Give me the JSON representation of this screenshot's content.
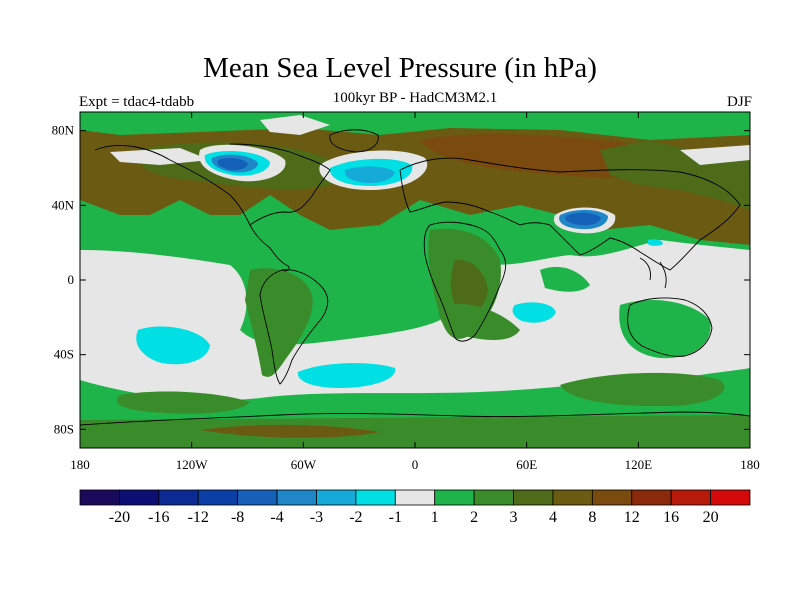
{
  "title": "Mean Sea Level Pressure (in hPa)",
  "subtitle": "100kyr BP - HadCM3M2.1",
  "experiment": "Expt = tdac4-tdabb",
  "season": "DJF",
  "map": {
    "projection": "cylindrical-equidistant",
    "lon_range": [
      -180,
      180
    ],
    "lat_range": [
      -90,
      90
    ],
    "lat_ticks": [
      {
        "value": 80,
        "label": "80N"
      },
      {
        "value": 40,
        "label": "40N"
      },
      {
        "value": 0,
        "label": "0"
      },
      {
        "value": -40,
        "label": "40S"
      },
      {
        "value": -80,
        "label": "80S"
      }
    ],
    "lon_ticks": [
      {
        "value": -180,
        "label": "180"
      },
      {
        "value": -120,
        "label": "120W"
      },
      {
        "value": -60,
        "label": "60W"
      },
      {
        "value": 0,
        "label": "0"
      },
      {
        "value": 60,
        "label": "60E"
      },
      {
        "value": 120,
        "label": "120E"
      },
      {
        "value": 180,
        "label": "180"
      }
    ]
  },
  "colorbar": {
    "colors": [
      "#1a0a5c",
      "#0d0e73",
      "#0b2a94",
      "#0b3fa8",
      "#1560b9",
      "#1f86c8",
      "#15aad8",
      "#00dfe4",
      "#e6e6e6",
      "#1fb44a",
      "#3a8c2b",
      "#4e6b1a",
      "#6a5a12",
      "#7a4a0e",
      "#8a2a0a",
      "#b81a0a",
      "#d40a0a"
    ],
    "labels": [
      "-20",
      "-16",
      "-12",
      "-8",
      "-4",
      "-3",
      "-2",
      "-1",
      "1",
      "2",
      "3",
      "4",
      "8",
      "12",
      "16",
      "20"
    ]
  }
}
